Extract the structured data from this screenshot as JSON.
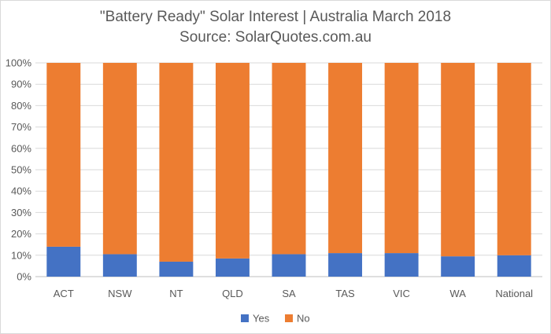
{
  "chart_data": {
    "type": "bar",
    "stacked": "percent",
    "title": "\"Battery Ready\" Solar Interest  |  Australia March 2018",
    "subtitle": "Source: SolarQuotes.com.au",
    "categories": [
      "ACT",
      "NSW",
      "NT",
      "QLD",
      "SA",
      "TAS",
      "VIC",
      "WA",
      "National"
    ],
    "series": [
      {
        "name": "Yes",
        "color": "#4472C4",
        "values": [
          14,
          10.5,
          7,
          8.5,
          10.5,
          11,
          11,
          9.5,
          10
        ]
      },
      {
        "name": "No",
        "color": "#ED7D31",
        "values": [
          86,
          89.5,
          93,
          91.5,
          89.5,
          89,
          89,
          90.5,
          90
        ]
      }
    ],
    "ylim": [
      0,
      100
    ],
    "y_ticks": [
      "0%",
      "10%",
      "20%",
      "30%",
      "40%",
      "50%",
      "60%",
      "70%",
      "80%",
      "90%",
      "100%"
    ],
    "grid": true,
    "legend": "bottom"
  }
}
